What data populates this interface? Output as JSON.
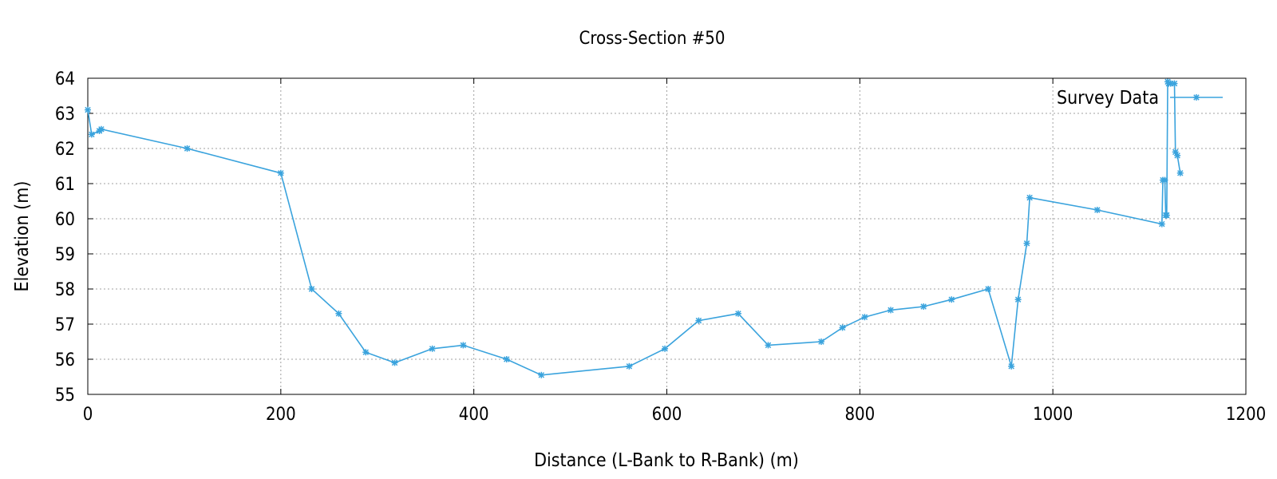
{
  "chart_data": {
    "type": "line",
    "title": "Cross-Section #50",
    "xlabel": "Distance (L-Bank to R-Bank) (m)",
    "ylabel": "Elevation (m)",
    "xlim": [
      0,
      1200
    ],
    "ylim": [
      55,
      64
    ],
    "xticks": [
      0,
      200,
      400,
      600,
      800,
      1000,
      1200
    ],
    "yticks": [
      55,
      56,
      57,
      58,
      59,
      60,
      61,
      62,
      63,
      64
    ],
    "grid": true,
    "legend_position": "top-right",
    "series": [
      {
        "name": "Survey Data",
        "color": "#3aa3dd",
        "marker": "asterisk",
        "x": [
          0,
          4,
          12,
          14,
          103,
          200,
          232,
          260,
          288,
          318,
          357,
          389,
          434,
          470,
          561,
          598,
          633,
          674,
          705,
          760,
          782,
          805,
          832,
          866,
          895,
          933,
          957,
          964,
          973,
          976,
          1046,
          1113,
          1114,
          1116,
          1117,
          1118,
          1119,
          1120,
          1122,
          1126,
          1127,
          1129,
          1132
        ],
        "y": [
          63.1,
          62.4,
          62.5,
          62.55,
          62.0,
          61.3,
          58.0,
          57.3,
          56.2,
          55.9,
          56.3,
          56.4,
          56.0,
          55.55,
          55.8,
          56.3,
          57.1,
          57.3,
          56.4,
          56.5,
          56.9,
          57.2,
          57.4,
          57.5,
          57.7,
          58.0,
          55.8,
          57.7,
          59.3,
          60.6,
          60.25,
          59.85,
          61.1,
          61.1,
          60.1,
          60.1,
          63.9,
          63.85,
          63.85,
          63.85,
          61.9,
          61.8,
          61.3
        ]
      }
    ]
  }
}
